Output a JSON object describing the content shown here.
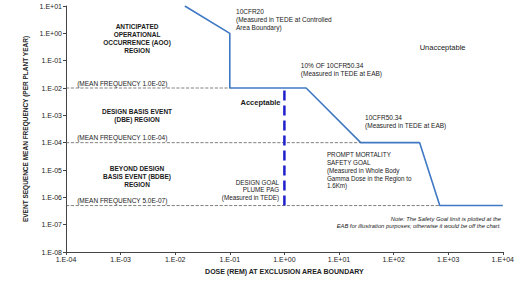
{
  "chart_data": {
    "type": "line",
    "x_label": "DOSE (REM) AT EXCLUSION AREA BOUNDARY",
    "y_label": "EVENT SEQUENCE MEAN FREQUENCY (PER PLANT YEAR)",
    "log": true,
    "grid": false,
    "xlim": [
      0.0001,
      10000
    ],
    "ylim": [
      1e-08,
      10
    ],
    "xticks": [
      {
        "value": 0.0001,
        "label": "1.E-04"
      },
      {
        "value": 0.001,
        "label": "1.E-03"
      },
      {
        "value": 0.01,
        "label": "1.E-02"
      },
      {
        "value": 0.1,
        "label": "1.E-01"
      },
      {
        "value": 1,
        "label": "1.E+00"
      },
      {
        "value": 10,
        "label": "1.E+01"
      },
      {
        "value": 100,
        "label": "1.E+02"
      },
      {
        "value": 1000,
        "label": "1.E+03"
      },
      {
        "value": 10000,
        "label": "1.E+04"
      }
    ],
    "yticks": [
      {
        "value": 1e-08,
        "label": "1.E-08"
      },
      {
        "value": 1e-07,
        "label": "1.E-07"
      },
      {
        "value": 1e-06,
        "label": "1.E-06"
      },
      {
        "value": 1e-05,
        "label": "1.E-05"
      },
      {
        "value": 0.0001,
        "label": "1.E-04"
      },
      {
        "value": 0.001,
        "label": "1.E-03"
      },
      {
        "value": 0.01,
        "label": "1.E-02"
      },
      {
        "value": 0.1,
        "label": "1.E-01"
      },
      {
        "value": 1,
        "label": "1.E+00"
      },
      {
        "value": 10,
        "label": "1.E+01"
      }
    ],
    "series": [
      {
        "color": "#3f78c4",
        "line_style": "solid",
        "x": [
          0.015,
          0.1,
          0.1,
          2.5,
          25,
          300,
          700,
          10000
        ],
        "values": [
          10,
          1,
          0.01,
          0.01,
          0.0001,
          0.0001,
          5e-07,
          5e-07
        ]
      },
      {
        "color": "#606060",
        "line_style": "dashed",
        "x": [
          0.0001,
          0.1
        ],
        "values": [
          0.01,
          0.01
        ]
      },
      {
        "color": "#606060",
        "line_style": "dashed",
        "x": [
          0.0001,
          25
        ],
        "values": [
          0.0001,
          0.0001
        ]
      },
      {
        "color": "#606060",
        "line_style": "dashed",
        "x": [
          0.0001,
          700
        ],
        "values": [
          5e-07,
          5e-07
        ]
      },
      {
        "color": "#1f1fcc",
        "line_style": "dashed",
        "x": [
          1,
          1
        ],
        "values": [
          5e-07,
          0.01
        ]
      }
    ],
    "annotations": [
      "ANTICIPATED\nOPERATIONAL\nOCCURRENCE (AOO)\nREGION",
      "DESIGN BASIS EVENT\n(DBE) REGION",
      "BEYOND DESIGN\nBASIS EVENT (BDBE)\nREGION",
      "(MEAN FREQUENCY 1.0E-02)",
      "(MEAN FREQUENCY 1.0E-04)",
      "(MEAN FREQUENCY 5.0E-07)",
      "10CFR20\n(Measured in TEDE at Controlled\nArea Boundary)",
      "Unacceptable",
      "10% OF 10CFR50.34\n(Measured in TEDE at EAB)",
      "Acceptable",
      "10CFR50.34\n(Measured in TEDE at EAB)",
      "PROMPT MORTALITY\nSAFETY GOAL\n(Measured in Whole Body\nGamma Dose in the Region to\n1.6Km)",
      "DESIGN GOAL\nPLUME PAG\n(Measured in TEDE)",
      "Note: The Safety Goal limit is plotted at the\nEAB for illustration purposes; otherwise it would be off the chart."
    ]
  }
}
